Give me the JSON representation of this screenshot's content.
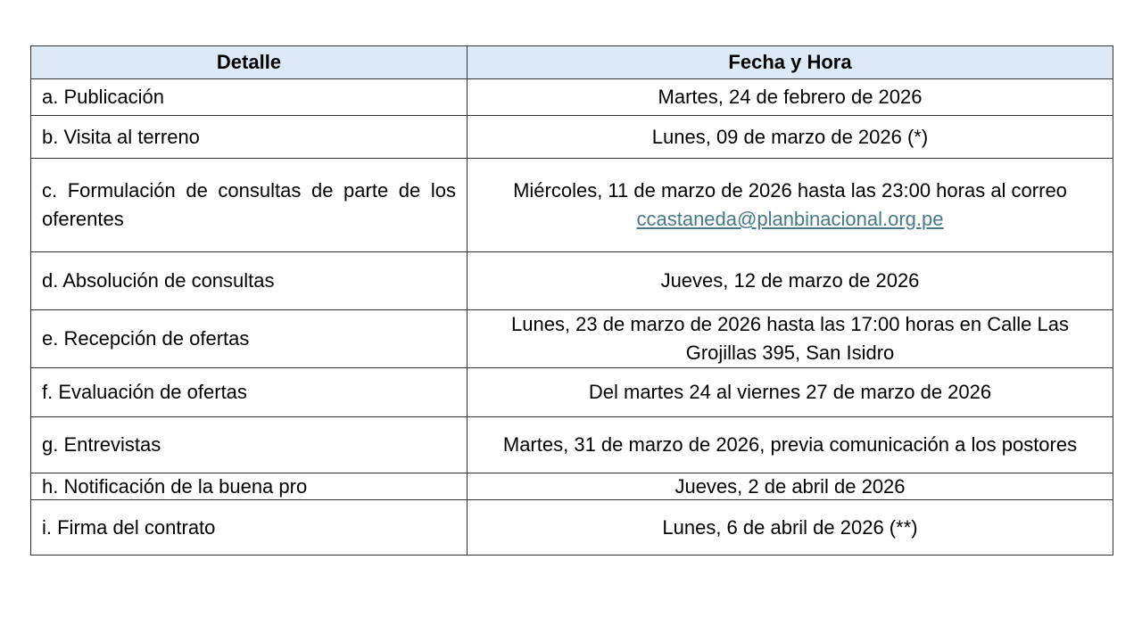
{
  "table": {
    "headers": [
      "Detalle",
      "Fecha y Hora"
    ],
    "rows": [
      {
        "detail": "a. Publicación",
        "date": "Martes, 24 de febrero de 2026"
      },
      {
        "detail": "b. Visita al terreno",
        "date": "Lunes, 09 de marzo de 2026 (*)"
      },
      {
        "detail": "c. Formulación de consultas de parte de los oferentes",
        "date": "Miércoles, 11 de marzo de 2026 hasta las 23:00 horas al correo ",
        "link": "ccastaneda@planbinacional.org.pe"
      },
      {
        "detail": "d. Absolución de consultas",
        "date": "Jueves, 12 de marzo de 2026"
      },
      {
        "detail": "e. Recepción de ofertas",
        "date": "Lunes, 23 de marzo de 2026 hasta las 17:00 horas en Calle Las Grojillas 395, San Isidro"
      },
      {
        "detail": "f. Evaluación de ofertas",
        "date": "Del martes 24 al viernes 27 de marzo de 2026"
      },
      {
        "detail": "g. Entrevistas",
        "date": "Martes, 31 de marzo de 2026, previa comunicación a los postores"
      },
      {
        "detail": "h. Notificación de la buena pro",
        "date": "Jueves, 2 de abril de 2026"
      },
      {
        "detail": "i. Firma del contrato",
        "date": "Lunes, 6 de abril de 2026 (**)"
      }
    ]
  },
  "colors": {
    "header_bg": "#dce9f7",
    "link": "#467886"
  }
}
